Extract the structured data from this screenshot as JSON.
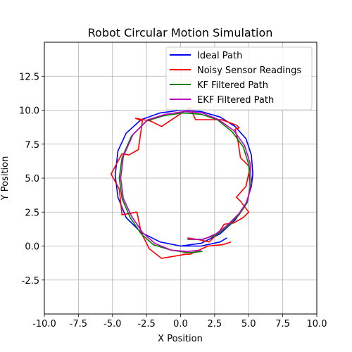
{
  "chart_data": {
    "type": "line",
    "title": "Robot Circular Motion Simulation",
    "xlabel": "X Position",
    "ylabel": "Y Position",
    "xlim": [
      -10,
      10
    ],
    "ylim": [
      -5,
      15
    ],
    "xticks": [
      "-10.0",
      "-7.5",
      "-5.0",
      "-2.5",
      "0.0",
      "2.5",
      "5.0",
      "7.5",
      "10.0"
    ],
    "yticks": [
      "-2.5",
      "0.0",
      "2.5",
      "5.0",
      "7.5",
      "10.0",
      "12.5"
    ],
    "grid": true,
    "legend_position": "top-right",
    "series": [
      {
        "name": "Ideal Path",
        "color": "#0000ff",
        "x": [
          0,
          1.5,
          2.9,
          4.0,
          4.8,
          5.2,
          5.3,
          5.2,
          4.8,
          4.0,
          2.9,
          1.5,
          0,
          -1.5,
          -2.9,
          -4.0,
          -4.6,
          -4.8,
          -4.6,
          -4.0,
          -2.9,
          -1.5,
          0,
          1.5,
          2.9,
          3.4
        ],
        "y": [
          0.0,
          0.2,
          0.9,
          1.9,
          3.1,
          4.4,
          5.3,
          6.7,
          7.9,
          8.8,
          9.5,
          9.9,
          10.0,
          9.8,
          9.3,
          8.3,
          7.0,
          5.2,
          3.6,
          2.1,
          1.0,
          0.3,
          0.0,
          0.0,
          0.3,
          0.6
        ],
        "values_estimated": true
      },
      {
        "name": "Noisy Sensor Readings",
        "color": "#ff0000",
        "x": [
          0.5,
          1.2,
          2.1,
          2.8,
          3.2,
          3.9,
          4.6,
          5.0,
          4.4,
          4.1,
          4.8,
          5.1,
          4.9,
          4.4,
          4.2,
          4.0,
          4.3,
          4.1,
          3.0,
          1.1,
          0.7,
          -1.4,
          -2.2,
          -3.3,
          -2.8,
          -3.1,
          -3.8,
          -4.3,
          -5.1,
          -4.5,
          -4.3,
          -3.2,
          -2.9,
          -2.3,
          -1.4,
          0.4,
          0.2,
          0.7,
          2.0,
          3.1,
          3.7
        ],
        "y": [
          0.6,
          0.5,
          0.3,
          1.0,
          1.6,
          1.7,
          2.1,
          2.5,
          3.3,
          3.6,
          4.4,
          5.8,
          6.0,
          6.5,
          7.8,
          8.6,
          8.7,
          8.9,
          9.3,
          9.3,
          10.2,
          8.8,
          9.2,
          9.4,
          9.2,
          7.1,
          6.7,
          6.8,
          5.3,
          4.2,
          2.3,
          2.5,
          1.0,
          -0.2,
          -0.9,
          -0.6,
          -0.6,
          -0.6,
          0.0,
          0.1,
          0.3
        ],
        "values_estimated": true
      },
      {
        "name": "KF Filtered Path",
        "color": "#008000",
        "x": [
          0.5,
          1.6,
          2.6,
          3.4,
          4.3,
          4.9,
          5.1,
          5.0,
          4.6,
          3.8,
          2.7,
          1.5,
          0.2,
          -1.2,
          -2.5,
          -3.6,
          -4.3,
          -4.5,
          -4.3,
          -3.7,
          -2.9,
          -2.0,
          -0.7,
          0.6,
          1.6
        ],
        "y": [
          0.5,
          0.5,
          0.8,
          1.4,
          2.3,
          3.2,
          4.4,
          6.0,
          7.3,
          8.4,
          9.3,
          9.7,
          9.8,
          9.6,
          9.2,
          8.1,
          6.5,
          5.0,
          3.5,
          2.1,
          0.9,
          0.1,
          -0.3,
          -0.5,
          -0.4
        ],
        "values_estimated": true
      },
      {
        "name": "EKF Filtered Path",
        "color": "#bf00bf",
        "x": [
          0.6,
          1.7,
          2.6,
          3.4,
          4.3,
          4.9,
          5.2,
          5.1,
          4.7,
          3.9,
          2.8,
          1.6,
          0.3,
          -1.1,
          -2.4,
          -3.5,
          -4.2,
          -4.4,
          -4.2,
          -3.6,
          -2.8,
          -1.9,
          -0.7,
          0.5,
          1.5
        ],
        "y": [
          0.5,
          0.5,
          0.9,
          1.5,
          2.4,
          3.3,
          4.6,
          6.1,
          7.4,
          8.5,
          9.3,
          9.8,
          9.9,
          9.7,
          9.3,
          8.2,
          6.6,
          5.0,
          3.5,
          2.2,
          1.0,
          0.2,
          -0.3,
          -0.4,
          -0.3
        ],
        "values_estimated": true
      }
    ]
  }
}
